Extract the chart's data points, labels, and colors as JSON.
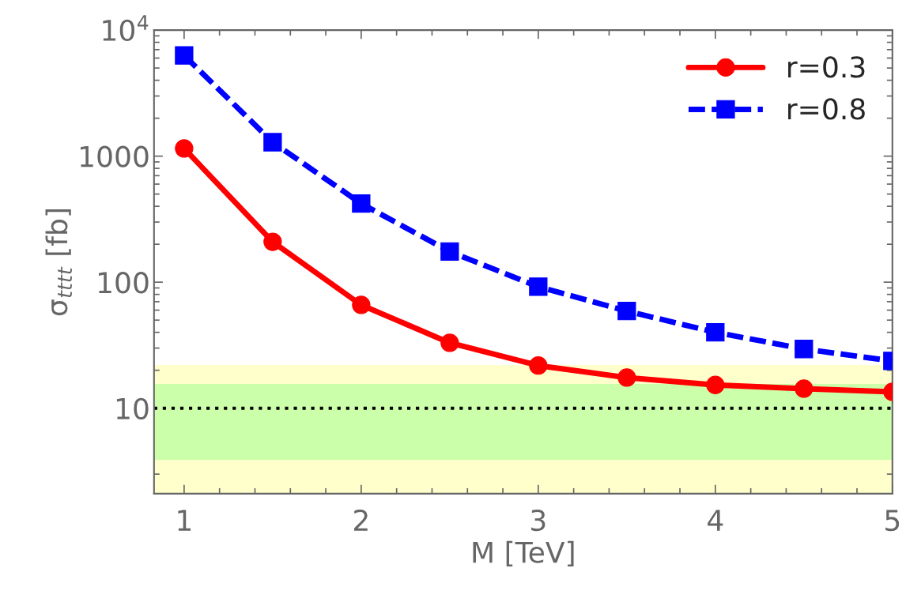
{
  "chart_data": {
    "type": "line",
    "xlabel": "M [TeV]",
    "ylabel": "σ$_{tttt}$ [fb]",
    "x": [
      1,
      1.5,
      2,
      2.5,
      3,
      3.5,
      4,
      4.5,
      5
    ],
    "series": [
      {
        "name": "r=0.3",
        "color": "#ff0000",
        "marker": "circle",
        "line_style": "solid",
        "values": [
          1150,
          209,
          66,
          33,
          21.8,
          17.5,
          15.3,
          14.3,
          13.5
        ]
      },
      {
        "name": "r=0.8",
        "color": "#0000ff",
        "marker": "square",
        "line_style": "dashed",
        "values": [
          6300,
          1290,
          420,
          175,
          92,
          59,
          40,
          29.5,
          23.7
        ]
      }
    ],
    "log": "y",
    "xlim": [
      0.83,
      5
    ],
    "ylim": [
      2.1,
      10000
    ],
    "xticks": [
      1,
      2,
      3,
      4,
      5
    ],
    "yticks": [
      10,
      100,
      1000,
      {
        "value": 10000,
        "label": "10$^{4}$"
      }
    ],
    "bands": [
      {
        "axis": "y",
        "from": 2.1,
        "to": 22,
        "color": "#ffffcc"
      },
      {
        "axis": "y",
        "from": 3.9,
        "to": 15.6,
        "color": "#ccffaa"
      }
    ],
    "ref_lines": [
      {
        "axis": "y",
        "value": 10,
        "color": "#000000",
        "line_style": "dotted"
      }
    ],
    "grid": false,
    "legend": "top right"
  }
}
